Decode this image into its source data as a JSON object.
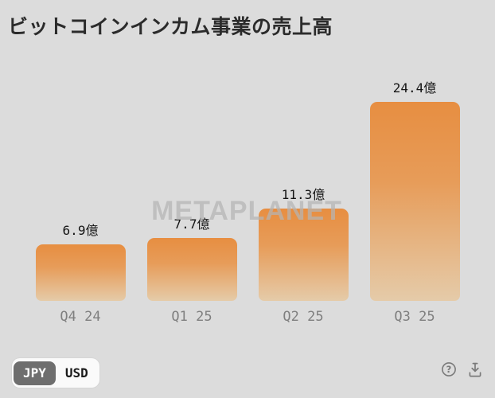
{
  "title": "ビットコインインカム事業の売上高",
  "watermark": "METAPLANET",
  "chart_data": {
    "type": "bar",
    "title": "ビットコインインカム事業の売上高",
    "categories": [
      "Q4 24",
      "Q1 25",
      "Q2 25",
      "Q3 25"
    ],
    "values": [
      6.9,
      7.7,
      11.3,
      24.4
    ],
    "value_labels": [
      "6.9億",
      "7.7億",
      "11.3億",
      "24.4億"
    ],
    "unit": "億円",
    "ylim": [
      0,
      24.4
    ],
    "grid": false,
    "legend_position": "none",
    "bar_gradient_top": "#e78e41",
    "bar_gradient_bottom": "#e5cba9"
  },
  "currency_toggle": {
    "options": [
      {
        "label": "JPY",
        "selected": true
      },
      {
        "label": "USD",
        "selected": false
      }
    ]
  },
  "footer": {
    "help_icon": "question-circle",
    "download_icon": "download-tray"
  },
  "colors": {
    "background": "#dcdcdc",
    "title_text": "#2b2b2b",
    "axis_label": "#7f7f7f",
    "value_label": "#141414",
    "watermark": "#b5b5b5",
    "toggle_selected_bg": "#6e6e6e",
    "toggle_selected_text": "#ffffff",
    "toggle_bg": "#fafafa",
    "icon_gray": "#7a7a7a"
  }
}
